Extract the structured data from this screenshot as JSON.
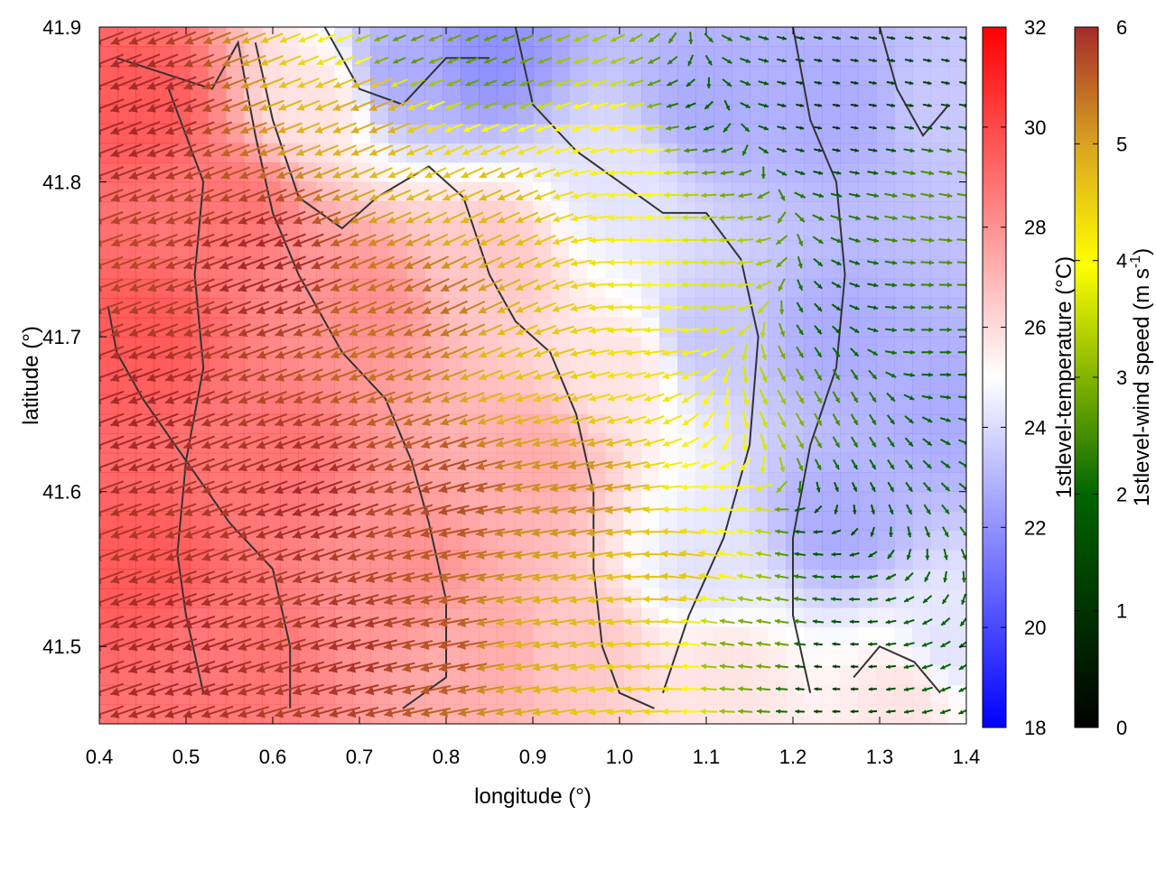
{
  "chart_data": {
    "type": "heatmap",
    "xlabel": "longitude (°)",
    "ylabel": "latitude (°)",
    "xlim": [
      0.4,
      1.4
    ],
    "ylim": [
      41.45,
      41.9
    ],
    "x_ticks": [
      "0.4",
      "0.5",
      "0.6",
      "0.7",
      "0.8",
      "0.9",
      "1.0",
      "1.1",
      "1.2",
      "1.3",
      "1.4"
    ],
    "y_ticks": [
      "41.5",
      "41.6",
      "41.7",
      "41.8",
      "41.9"
    ],
    "temperature": {
      "label": "1stlevel-temperature (°C)",
      "range": [
        18,
        32
      ],
      "ticks": [
        "18",
        "20",
        "22",
        "24",
        "26",
        "28",
        "30",
        "32"
      ],
      "colormap": [
        "#0000ff",
        "#ffffff",
        "#ff0000"
      ],
      "control_points": [
        {
          "lon": 0.45,
          "lat": 41.85,
          "t": 31
        },
        {
          "lon": 0.45,
          "lat": 41.7,
          "t": 31
        },
        {
          "lon": 0.45,
          "lat": 41.55,
          "t": 31
        },
        {
          "lon": 0.55,
          "lat": 41.78,
          "t": 30
        },
        {
          "lon": 0.6,
          "lat": 41.62,
          "t": 30
        },
        {
          "lon": 0.55,
          "lat": 41.5,
          "t": 30
        },
        {
          "lon": 0.7,
          "lat": 41.72,
          "t": 29
        },
        {
          "lon": 0.75,
          "lat": 41.55,
          "t": 29
        },
        {
          "lon": 0.65,
          "lat": 41.85,
          "t": 26
        },
        {
          "lon": 0.75,
          "lat": 41.87,
          "t": 22
        },
        {
          "lon": 0.85,
          "lat": 41.88,
          "t": 21
        },
        {
          "lon": 0.85,
          "lat": 41.75,
          "t": 27
        },
        {
          "lon": 0.9,
          "lat": 41.62,
          "t": 28
        },
        {
          "lon": 0.85,
          "lat": 41.5,
          "t": 28
        },
        {
          "lon": 1.0,
          "lat": 41.8,
          "t": 24
        },
        {
          "lon": 1.0,
          "lat": 41.68,
          "t": 26
        },
        {
          "lon": 0.95,
          "lat": 41.5,
          "t": 27
        },
        {
          "lon": 1.1,
          "lat": 41.85,
          "t": 22
        },
        {
          "lon": 1.1,
          "lat": 41.7,
          "t": 23
        },
        {
          "lon": 1.1,
          "lat": 41.55,
          "t": 24
        },
        {
          "lon": 1.12,
          "lat": 41.48,
          "t": 26
        },
        {
          "lon": 1.25,
          "lat": 41.85,
          "t": 22
        },
        {
          "lon": 1.25,
          "lat": 41.7,
          "t": 22
        },
        {
          "lon": 1.25,
          "lat": 41.58,
          "t": 22
        },
        {
          "lon": 1.38,
          "lat": 41.85,
          "t": 23
        },
        {
          "lon": 1.38,
          "lat": 41.65,
          "t": 22
        },
        {
          "lon": 1.38,
          "lat": 41.5,
          "t": 24
        },
        {
          "lon": 1.33,
          "lat": 41.47,
          "t": 26
        }
      ]
    },
    "wind_speed": {
      "label": "1stlevel-wind speed (m s-1)",
      "range": [
        0,
        6
      ],
      "ticks": [
        "0",
        "1",
        "2",
        "3",
        "4",
        "5",
        "6"
      ],
      "colormap": [
        "#000000",
        "#006400",
        "#ffff00",
        "#daa520",
        "#a52a2a"
      ],
      "control_points": [
        {
          "lon": 0.45,
          "lat": 41.85,
          "s": 6.0
        },
        {
          "lon": 0.45,
          "lat": 41.65,
          "s": 6.0
        },
        {
          "lon": 0.5,
          "lat": 41.5,
          "s": 6.0
        },
        {
          "lon": 0.6,
          "lat": 41.75,
          "s": 6.0
        },
        {
          "lon": 0.65,
          "lat": 41.6,
          "s": 6.0
        },
        {
          "lon": 0.7,
          "lat": 41.5,
          "s": 5.9
        },
        {
          "lon": 0.78,
          "lat": 41.72,
          "s": 5.2
        },
        {
          "lon": 0.8,
          "lat": 41.6,
          "s": 5.6
        },
        {
          "lon": 0.8,
          "lat": 41.5,
          "s": 5.5
        },
        {
          "lon": 0.72,
          "lat": 41.85,
          "s": 4.5
        },
        {
          "lon": 0.75,
          "lat": 41.88,
          "s": 2.0
        },
        {
          "lon": 0.85,
          "lat": 41.88,
          "s": 2.0
        },
        {
          "lon": 0.85,
          "lat": 41.78,
          "s": 4.2
        },
        {
          "lon": 0.9,
          "lat": 41.68,
          "s": 4.0
        },
        {
          "lon": 0.95,
          "lat": 41.6,
          "s": 4.8
        },
        {
          "lon": 0.9,
          "lat": 41.5,
          "s": 4.3
        },
        {
          "lon": 1.0,
          "lat": 41.82,
          "s": 3.2
        },
        {
          "lon": 1.02,
          "lat": 41.68,
          "s": 3.5
        },
        {
          "lon": 1.05,
          "lat": 41.55,
          "s": 4.0
        },
        {
          "lon": 1.0,
          "lat": 41.48,
          "s": 3.8
        },
        {
          "lon": 1.1,
          "lat": 41.85,
          "s": 1.5
        },
        {
          "lon": 1.12,
          "lat": 41.72,
          "s": 2.8
        },
        {
          "lon": 1.12,
          "lat": 41.6,
          "s": 3.0
        },
        {
          "lon": 1.15,
          "lat": 41.5,
          "s": 2.2
        },
        {
          "lon": 1.25,
          "lat": 41.85,
          "s": 0.8
        },
        {
          "lon": 1.25,
          "lat": 41.72,
          "s": 1.4
        },
        {
          "lon": 1.25,
          "lat": 41.58,
          "s": 1.2
        },
        {
          "lon": 1.25,
          "lat": 41.48,
          "s": 0.8
        },
        {
          "lon": 1.37,
          "lat": 41.78,
          "s": 2.0
        },
        {
          "lon": 1.37,
          "lat": 41.65,
          "s": 1.5
        },
        {
          "lon": 1.37,
          "lat": 41.5,
          "s": 1.5
        },
        {
          "lon": 1.35,
          "lat": 41.88,
          "s": 1.0
        }
      ],
      "direction_control_points": [
        {
          "lon": 0.5,
          "lat": 41.7,
          "dir_deg": 200
        },
        {
          "lon": 0.7,
          "lat": 41.65,
          "dir_deg": 200
        },
        {
          "lon": 0.85,
          "lat": 41.75,
          "dir_deg": 205
        },
        {
          "lon": 0.9,
          "lat": 41.55,
          "dir_deg": 190
        },
        {
          "lon": 1.05,
          "lat": 41.75,
          "dir_deg": 180
        },
        {
          "lon": 1.15,
          "lat": 41.55,
          "dir_deg": 170
        },
        {
          "lon": 1.25,
          "lat": 41.65,
          "dir_deg": 300
        },
        {
          "lon": 1.37,
          "lat": 41.7,
          "dir_deg": 0
        },
        {
          "lon": 1.3,
          "lat": 41.85,
          "dir_deg": 350
        }
      ]
    },
    "contours": [
      [
        [
          0.42,
          41.88
        ],
        [
          0.53,
          41.86
        ],
        [
          0.56,
          41.89
        ],
        [
          0.58,
          41.83
        ],
        [
          0.6,
          41.78
        ],
        [
          0.63,
          41.74
        ],
        [
          0.68,
          41.69
        ],
        [
          0.73,
          41.66
        ],
        [
          0.76,
          41.62
        ],
        [
          0.78,
          41.58
        ],
        [
          0.8,
          41.53
        ],
        [
          0.8,
          41.48
        ],
        [
          0.75,
          41.46
        ]
      ],
      [
        [
          0.41,
          41.72
        ],
        [
          0.42,
          41.69
        ],
        [
          0.45,
          41.66
        ],
        [
          0.5,
          41.62
        ],
        [
          0.55,
          41.58
        ],
        [
          0.6,
          41.55
        ],
        [
          0.62,
          41.5
        ],
        [
          0.62,
          41.46
        ]
      ],
      [
        [
          0.58,
          41.89
        ],
        [
          0.6,
          41.84
        ],
        [
          0.63,
          41.79
        ],
        [
          0.68,
          41.77
        ],
        [
          0.72,
          41.79
        ],
        [
          0.78,
          41.81
        ],
        [
          0.82,
          41.79
        ],
        [
          0.85,
          41.74
        ],
        [
          0.88,
          41.71
        ],
        [
          0.92,
          41.69
        ],
        [
          0.95,
          41.65
        ],
        [
          0.97,
          41.6
        ],
        [
          0.97,
          41.55
        ],
        [
          0.98,
          41.5
        ],
        [
          1.0,
          41.47
        ],
        [
          1.04,
          41.46
        ]
      ],
      [
        [
          0.66,
          41.9
        ],
        [
          0.7,
          41.86
        ],
        [
          0.75,
          41.85
        ],
        [
          0.8,
          41.88
        ],
        [
          0.85,
          41.88
        ]
      ],
      [
        [
          0.48,
          41.86
        ],
        [
          0.52,
          41.8
        ],
        [
          0.51,
          41.74
        ],
        [
          0.52,
          41.68
        ],
        [
          0.5,
          41.62
        ],
        [
          0.49,
          41.56
        ],
        [
          0.5,
          41.52
        ],
        [
          0.52,
          41.47
        ]
      ],
      [
        [
          0.88,
          41.9
        ],
        [
          0.9,
          41.85
        ],
        [
          0.95,
          41.82
        ],
        [
          1.0,
          41.8
        ],
        [
          1.05,
          41.78
        ],
        [
          1.1,
          41.78
        ],
        [
          1.14,
          41.75
        ],
        [
          1.16,
          41.7
        ],
        [
          1.15,
          41.63
        ],
        [
          1.12,
          41.57
        ],
        [
          1.08,
          41.52
        ],
        [
          1.05,
          41.47
        ]
      ],
      [
        [
          1.2,
          41.9
        ],
        [
          1.22,
          41.84
        ],
        [
          1.25,
          41.8
        ],
        [
          1.26,
          41.74
        ],
        [
          1.25,
          41.68
        ],
        [
          1.22,
          41.63
        ],
        [
          1.2,
          41.57
        ],
        [
          1.2,
          41.52
        ],
        [
          1.22,
          41.47
        ]
      ],
      [
        [
          1.3,
          41.9
        ],
        [
          1.32,
          41.86
        ],
        [
          1.35,
          41.83
        ],
        [
          1.38,
          41.85
        ]
      ],
      [
        [
          1.27,
          41.48
        ],
        [
          1.3,
          41.5
        ],
        [
          1.34,
          41.49
        ],
        [
          1.37,
          41.47
        ]
      ]
    ]
  }
}
